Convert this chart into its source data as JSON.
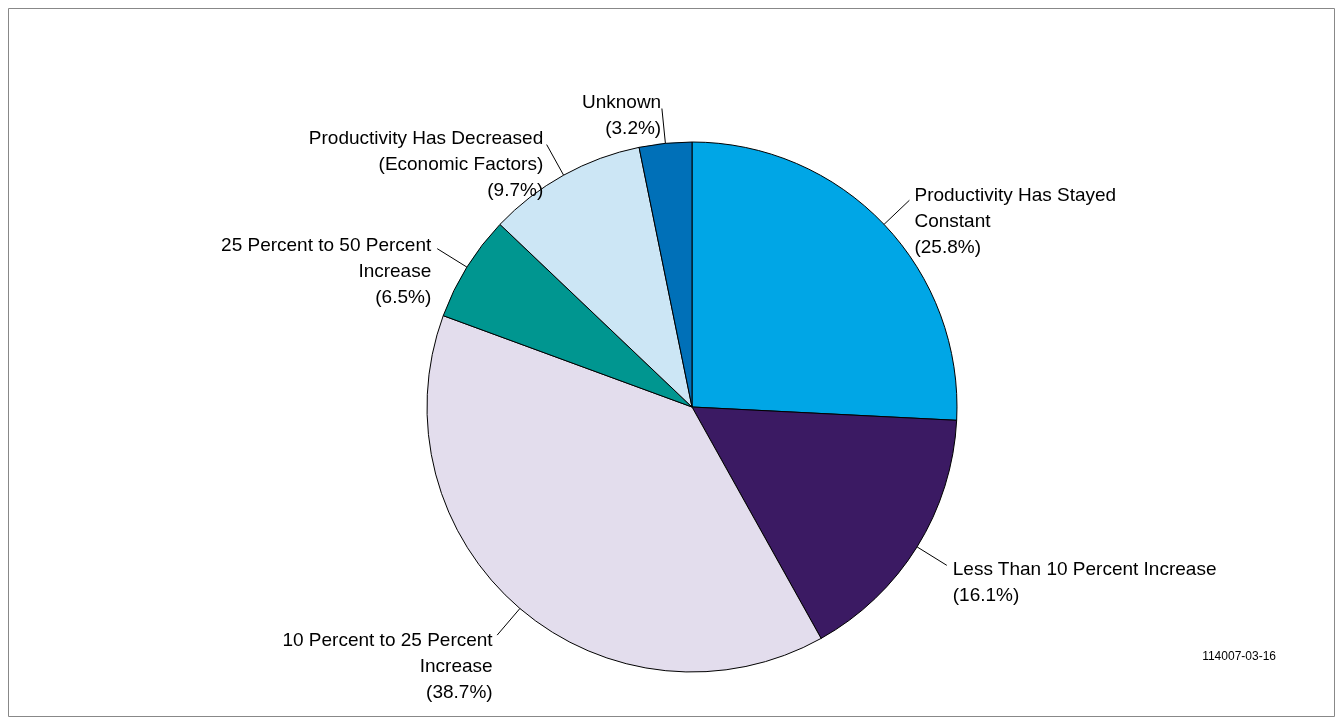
{
  "chart_data": {
    "type": "pie",
    "categories": [
      "Productivity Has Stayed Constant",
      "Less Than 10 Percent Increase",
      "10 Percent to 25 Percent Increase",
      "25 Percent to 50 Percent Increase",
      "Productivity Has Decreased (Economic Factors)",
      "Unknown"
    ],
    "values": [
      25.8,
      16.1,
      38.7,
      6.5,
      9.7,
      3.2
    ],
    "colors": [
      "#00a6e6",
      "#3b1a63",
      "#e3dded",
      "#009690",
      "#cce6f5",
      "#0070b8"
    ],
    "value_labels": [
      "(25.8%)",
      "(16.1%)",
      "(38.7%)",
      "(6.5%)",
      "(9.7%)",
      "(3.2%)"
    ],
    "annotations": [
      "114007-03-16"
    ]
  }
}
